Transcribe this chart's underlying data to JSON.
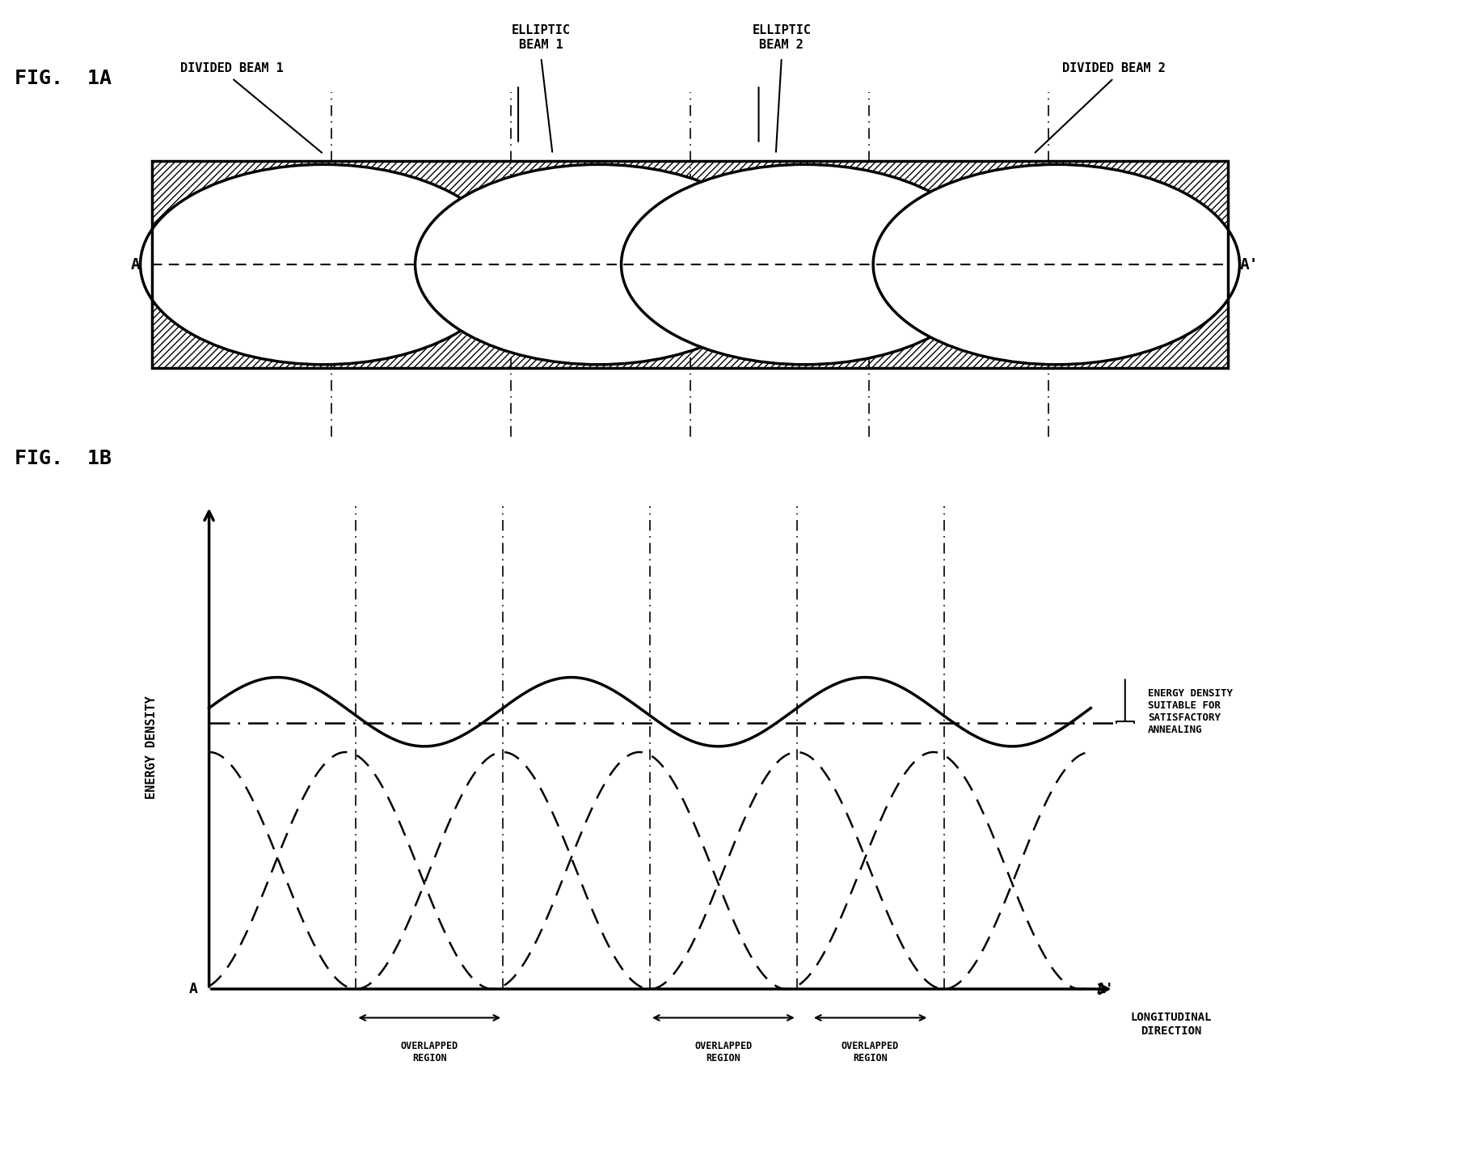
{
  "fig_title_a": "FIG.  1A",
  "fig_title_b": "FIG.  1B",
  "label_divided_beam1": "DIVIDED BEAM 1",
  "label_elliptic_beam1": "ELLIPTIC\nBEAM 1",
  "label_elliptic_beam2": "ELLIPTIC\nBEAM 2",
  "label_divided_beam2": "DIVIDED BEAM 2",
  "label_A": "A",
  "label_Aprime": "A'",
  "label_energy_density": "ENERGY DENSITY",
  "label_longitudinal": "LONGITUDINAL\nDIRECTION",
  "label_energy_density_text": "ENERGY DENSITY\nSUITABLE FOR\nSATISFACTORY\nANNEALING",
  "label_overlapped_region": "OVERLAPPED\nREGION",
  "bg_color": "#ffffff",
  "line_color": "#000000",
  "hatch_color": "#000000",
  "dash_color": "#000000"
}
